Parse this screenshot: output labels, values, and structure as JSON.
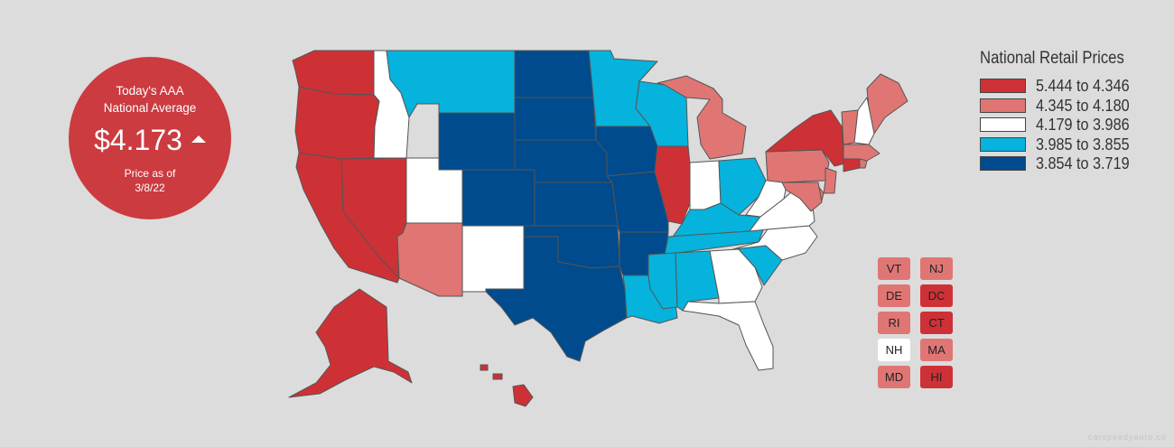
{
  "badge": {
    "title_line1": "Today's AAA",
    "title_line2": "National Average",
    "price": "$4.173",
    "trend_icon": "up-triangle-icon",
    "asof_line1": "Price as of",
    "asof_line2": "3/8/22"
  },
  "legend": {
    "title": "National Retail Prices",
    "ranges": [
      {
        "label": "5.444 to 4.346",
        "color": "#cd3136"
      },
      {
        "label": "4.345 to 4.180",
        "color": "#e07674"
      },
      {
        "label": "4.179 to 3.986",
        "color": "#ffffff"
      },
      {
        "label": "3.985 to 3.855",
        "color": "#05b3dc"
      },
      {
        "label": "3.854 to 3.719",
        "color": "#004b8d"
      }
    ]
  },
  "states": {
    "WA": 0,
    "OR": 0,
    "CA": 0,
    "NV": 0,
    "ID": 2,
    "MT": 3,
    "WY": 4,
    "UT": 2,
    "AZ": 1,
    "CO": 4,
    "NM": 2,
    "ND": 4,
    "SD": 4,
    "NE": 4,
    "KS": 4,
    "OK": 4,
    "TX": 4,
    "MN": 3,
    "IA": 4,
    "MO": 4,
    "AR": 4,
    "LA": 3,
    "WI": 3,
    "IL": 0,
    "MI": 1,
    "IN": 2,
    "OH": 3,
    "KY": 3,
    "TN": 3,
    "MS": 3,
    "AL": 3,
    "GA": 2,
    "FL": 2,
    "SC": 3,
    "NC": 2,
    "VA": 2,
    "WV": 2,
    "PA": 1,
    "NY": 0,
    "ME": 1,
    "AK": 0,
    "HI": 0
  },
  "small_states": [
    {
      "code": "VT",
      "bucket": 1
    },
    {
      "code": "NJ",
      "bucket": 1
    },
    {
      "code": "DE",
      "bucket": 1
    },
    {
      "code": "DC",
      "bucket": 0
    },
    {
      "code": "RI",
      "bucket": 1
    },
    {
      "code": "CT",
      "bucket": 0
    },
    {
      "code": "NH",
      "bucket": 2
    },
    {
      "code": "MA",
      "bucket": 1
    },
    {
      "code": "MD",
      "bucket": 1
    },
    {
      "code": "HI",
      "bucket": 0
    }
  ],
  "watermark": "carspeedyauto.co"
}
